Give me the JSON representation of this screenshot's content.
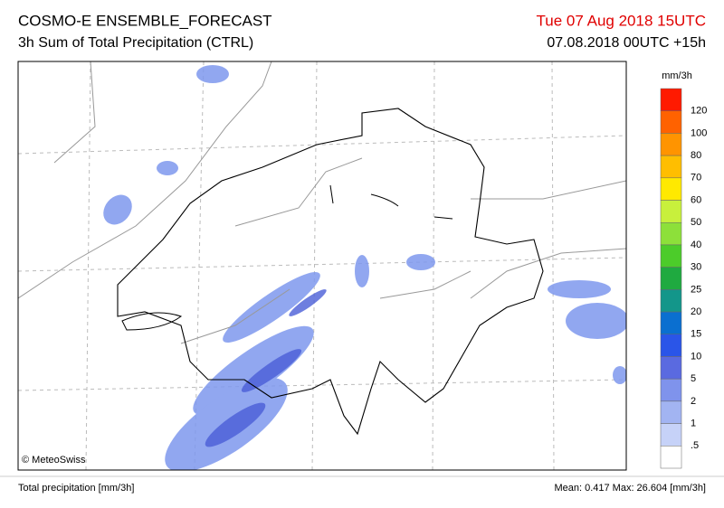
{
  "header": {
    "title": "COSMO-E ENSEMBLE_FORECAST",
    "subtitle": "3h Sum of Total Precipitation (CTRL)",
    "valid_time": "Tue 07 Aug 2018 15UTC",
    "run_time": "07.08.2018 00UTC +15h"
  },
  "legend": {
    "unit": "mm/3h",
    "labels": [
      "120",
      "100",
      "80",
      "70",
      "60",
      "50",
      "40",
      "30",
      "25",
      "20",
      "15",
      "10",
      "5",
      "2",
      "1",
      ".5"
    ],
    "colors": [
      "#ff1a00",
      "#ff6200",
      "#ff9400",
      "#ffbe00",
      "#ffe900",
      "#c8f03c",
      "#8de03a",
      "#4ccc2a",
      "#1faa40",
      "#13968a",
      "#0a6fd0",
      "#2a55e8",
      "#5a6ae0",
      "#7f93ec",
      "#a2b4f2",
      "#c6d2f8",
      "#ffffff"
    ]
  },
  "copyright": "© MeteoSwiss",
  "footer": {
    "left": "Total precipitation [mm/3h]",
    "right": "Mean:  0.417 Max: 26.604 [mm/3h]"
  }
}
